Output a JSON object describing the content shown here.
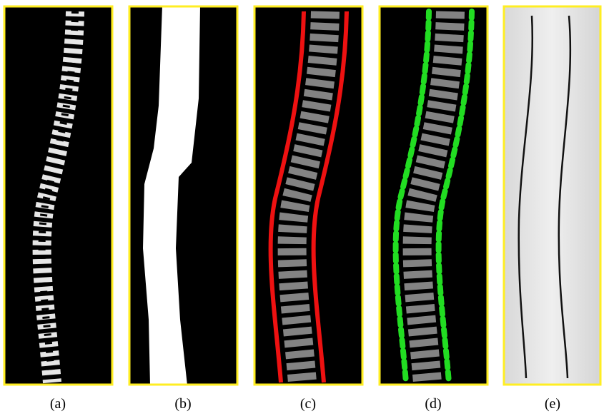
{
  "panels": [
    {
      "caption": "(a)"
    },
    {
      "caption": "(b)"
    },
    {
      "caption": "(c)"
    },
    {
      "caption": "(d)"
    },
    {
      "caption": "(e)"
    }
  ]
}
